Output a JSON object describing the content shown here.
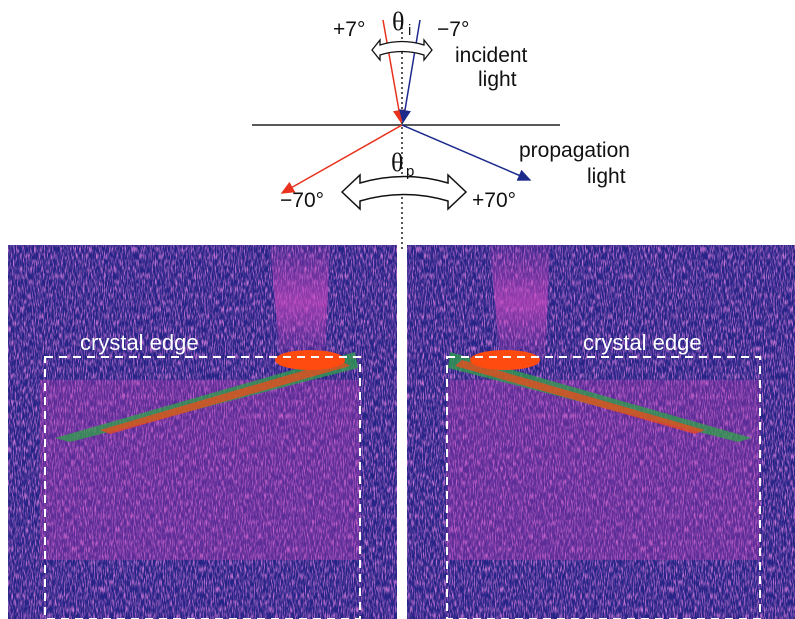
{
  "incident": {
    "angle_plus": "+7°",
    "angle_minus": "−7°",
    "theta": "θ",
    "theta_sub": "i",
    "label_lines": [
      "incident",
      "light"
    ]
  },
  "propagation": {
    "angle_minus": "−70°",
    "angle_plus": "+70°",
    "theta": "θ",
    "theta_sub": "p",
    "label_lines": [
      "propagation",
      "light"
    ]
  },
  "panels": [
    {
      "label": "crystal edge"
    },
    {
      "label": "crystal edge"
    }
  ]
}
